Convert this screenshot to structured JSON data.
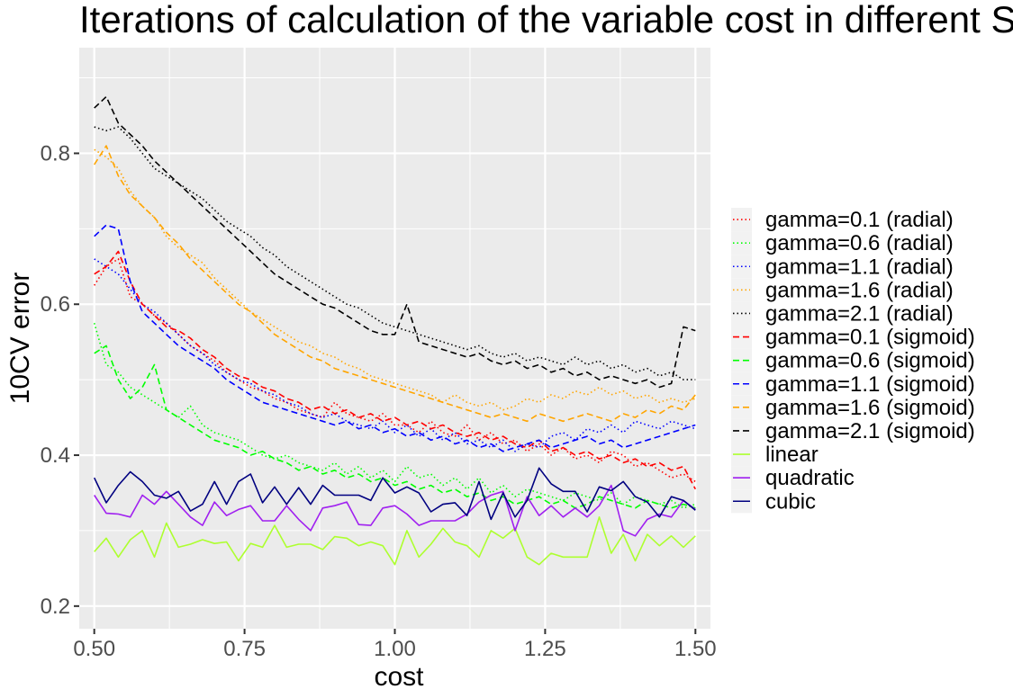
{
  "chart_data": {
    "type": "line",
    "title": "Iterations of calculation of the variable cost in different SVM",
    "xlabel": "cost",
    "ylabel": "10CV error",
    "xlim": [
      0.475,
      1.525
    ],
    "ylim": [
      0.17,
      0.94
    ],
    "x_ticks": [
      0.5,
      0.75,
      1.0,
      1.25,
      1.5
    ],
    "x_tick_labels": [
      "0.50",
      "0.75",
      "1.00",
      "1.25",
      "1.50"
    ],
    "y_ticks": [
      0.2,
      0.4,
      0.6,
      0.8
    ],
    "y_tick_labels": [
      "0.2",
      "0.4",
      "0.6",
      "0.8"
    ],
    "grid": true,
    "legend_position": "right",
    "x": [
      0.5,
      0.52,
      0.54,
      0.56,
      0.58,
      0.6,
      0.62,
      0.64,
      0.66,
      0.68,
      0.7,
      0.72,
      0.74,
      0.76,
      0.78,
      0.8,
      0.82,
      0.84,
      0.86,
      0.88,
      0.9,
      0.92,
      0.94,
      0.96,
      0.98,
      1.0,
      1.02,
      1.04,
      1.06,
      1.08,
      1.1,
      1.12,
      1.14,
      1.16,
      1.18,
      1.2,
      1.22,
      1.24,
      1.26,
      1.28,
      1.3,
      1.32,
      1.34,
      1.36,
      1.38,
      1.4,
      1.42,
      1.44,
      1.46,
      1.48,
      1.5
    ],
    "series": [
      {
        "name": "gamma=0.1 (radial)",
        "color": "#ff0000",
        "dash": "dotted",
        "values": [
          0.625,
          0.65,
          0.66,
          0.61,
          0.6,
          0.585,
          0.575,
          0.56,
          0.545,
          0.535,
          0.525,
          0.51,
          0.5,
          0.49,
          0.485,
          0.475,
          0.47,
          0.46,
          0.455,
          0.45,
          0.47,
          0.455,
          0.45,
          0.445,
          0.455,
          0.44,
          0.44,
          0.43,
          0.445,
          0.43,
          0.425,
          0.44,
          0.42,
          0.43,
          0.415,
          0.42,
          0.405,
          0.415,
          0.4,
          0.41,
          0.395,
          0.4,
          0.39,
          0.405,
          0.4,
          0.385,
          0.39,
          0.38,
          0.37,
          0.375,
          0.365
        ]
      },
      {
        "name": "gamma=0.6 (radial)",
        "color": "#00ff00",
        "dash": "dotted",
        "values": [
          0.575,
          0.52,
          0.51,
          0.49,
          0.48,
          0.47,
          0.46,
          0.45,
          0.465,
          0.44,
          0.43,
          0.425,
          0.42,
          0.41,
          0.4,
          0.395,
          0.4,
          0.39,
          0.385,
          0.38,
          0.39,
          0.375,
          0.385,
          0.37,
          0.38,
          0.365,
          0.385,
          0.37,
          0.375,
          0.36,
          0.37,
          0.355,
          0.37,
          0.35,
          0.36,
          0.345,
          0.355,
          0.35,
          0.345,
          0.34,
          0.35,
          0.345,
          0.34,
          0.35,
          0.335,
          0.345,
          0.34,
          0.335,
          0.34,
          0.33,
          0.335
        ]
      },
      {
        "name": "gamma=1.1 (radial)",
        "color": "#0000ff",
        "dash": "dotted",
        "values": [
          0.66,
          0.65,
          0.64,
          0.62,
          0.6,
          0.59,
          0.575,
          0.56,
          0.545,
          0.535,
          0.52,
          0.51,
          0.5,
          0.495,
          0.485,
          0.48,
          0.47,
          0.465,
          0.455,
          0.45,
          0.455,
          0.445,
          0.44,
          0.435,
          0.445,
          0.43,
          0.44,
          0.425,
          0.435,
          0.42,
          0.43,
          0.415,
          0.42,
          0.41,
          0.42,
          0.405,
          0.415,
          0.41,
          0.425,
          0.43,
          0.42,
          0.435,
          0.43,
          0.44,
          0.43,
          0.445,
          0.44,
          0.435,
          0.445,
          0.44,
          0.435
        ]
      },
      {
        "name": "gamma=1.6 (radial)",
        "color": "#ffa500",
        "dash": "dotted",
        "values": [
          0.805,
          0.795,
          0.78,
          0.75,
          0.73,
          0.715,
          0.69,
          0.675,
          0.665,
          0.655,
          0.635,
          0.62,
          0.605,
          0.59,
          0.58,
          0.57,
          0.56,
          0.55,
          0.545,
          0.535,
          0.53,
          0.52,
          0.515,
          0.505,
          0.5,
          0.495,
          0.49,
          0.485,
          0.48,
          0.47,
          0.48,
          0.47,
          0.465,
          0.47,
          0.46,
          0.465,
          0.475,
          0.47,
          0.48,
          0.475,
          0.485,
          0.48,
          0.49,
          0.48,
          0.485,
          0.475,
          0.48,
          0.47,
          0.475,
          0.47,
          0.475
        ]
      },
      {
        "name": "gamma=2.1 (radial)",
        "color": "#000000",
        "dash": "dotted",
        "values": [
          0.835,
          0.83,
          0.835,
          0.82,
          0.8,
          0.78,
          0.77,
          0.76,
          0.75,
          0.74,
          0.725,
          0.71,
          0.7,
          0.69,
          0.675,
          0.665,
          0.65,
          0.64,
          0.63,
          0.62,
          0.61,
          0.6,
          0.595,
          0.585,
          0.575,
          0.57,
          0.565,
          0.56,
          0.555,
          0.55,
          0.545,
          0.54,
          0.545,
          0.535,
          0.53,
          0.535,
          0.525,
          0.53,
          0.525,
          0.52,
          0.53,
          0.52,
          0.525,
          0.515,
          0.52,
          0.51,
          0.515,
          0.505,
          0.51,
          0.5,
          0.5
        ]
      },
      {
        "name": "gamma=0.1 (sigmoid)",
        "color": "#ff0000",
        "dash": "dashed",
        "values": [
          0.64,
          0.65,
          0.67,
          0.63,
          0.6,
          0.585,
          0.57,
          0.565,
          0.555,
          0.54,
          0.53,
          0.515,
          0.505,
          0.5,
          0.49,
          0.485,
          0.475,
          0.47,
          0.46,
          0.465,
          0.455,
          0.46,
          0.45,
          0.455,
          0.445,
          0.45,
          0.44,
          0.445,
          0.435,
          0.44,
          0.43,
          0.425,
          0.43,
          0.42,
          0.425,
          0.415,
          0.41,
          0.42,
          0.405,
          0.41,
          0.4,
          0.405,
          0.395,
          0.4,
          0.39,
          0.395,
          0.385,
          0.39,
          0.38,
          0.385,
          0.355
        ]
      },
      {
        "name": "gamma=0.6 (sigmoid)",
        "color": "#00ff00",
        "dash": "dashed",
        "values": [
          0.535,
          0.545,
          0.5,
          0.475,
          0.49,
          0.52,
          0.46,
          0.45,
          0.44,
          0.43,
          0.42,
          0.415,
          0.41,
          0.4,
          0.405,
          0.395,
          0.39,
          0.38,
          0.385,
          0.375,
          0.38,
          0.37,
          0.375,
          0.365,
          0.37,
          0.36,
          0.365,
          0.355,
          0.36,
          0.35,
          0.355,
          0.345,
          0.35,
          0.34,
          0.345,
          0.335,
          0.34,
          0.345,
          0.335,
          0.34,
          0.33,
          0.335,
          0.345,
          0.34,
          0.335,
          0.33,
          0.34,
          0.335,
          0.33,
          0.335,
          0.33
        ]
      },
      {
        "name": "gamma=1.1 (sigmoid)",
        "color": "#0000ff",
        "dash": "dashed",
        "values": [
          0.69,
          0.705,
          0.7,
          0.63,
          0.59,
          0.575,
          0.56,
          0.545,
          0.535,
          0.525,
          0.515,
          0.5,
          0.49,
          0.48,
          0.47,
          0.465,
          0.46,
          0.455,
          0.45,
          0.445,
          0.44,
          0.445,
          0.435,
          0.44,
          0.43,
          0.435,
          0.425,
          0.43,
          0.42,
          0.425,
          0.415,
          0.42,
          0.41,
          0.415,
          0.405,
          0.41,
          0.415,
          0.42,
          0.41,
          0.415,
          0.42,
          0.425,
          0.415,
          0.42,
          0.41,
          0.415,
          0.42,
          0.425,
          0.43,
          0.435,
          0.44
        ]
      },
      {
        "name": "gamma=1.6 (sigmoid)",
        "color": "#ffa500",
        "dash": "dashed",
        "values": [
          0.785,
          0.81,
          0.77,
          0.745,
          0.73,
          0.715,
          0.695,
          0.68,
          0.66,
          0.645,
          0.63,
          0.615,
          0.6,
          0.59,
          0.575,
          0.56,
          0.55,
          0.54,
          0.53,
          0.525,
          0.515,
          0.51,
          0.505,
          0.5,
          0.495,
          0.49,
          0.485,
          0.48,
          0.475,
          0.47,
          0.465,
          0.46,
          0.455,
          0.45,
          0.455,
          0.45,
          0.445,
          0.455,
          0.45,
          0.445,
          0.45,
          0.455,
          0.45,
          0.445,
          0.455,
          0.45,
          0.46,
          0.455,
          0.465,
          0.46,
          0.48
        ]
      },
      {
        "name": "gamma=2.1 (sigmoid)",
        "color": "#000000",
        "dash": "dashed",
        "values": [
          0.86,
          0.875,
          0.84,
          0.825,
          0.81,
          0.79,
          0.775,
          0.76,
          0.745,
          0.73,
          0.715,
          0.7,
          0.685,
          0.67,
          0.655,
          0.64,
          0.63,
          0.62,
          0.61,
          0.6,
          0.595,
          0.585,
          0.575,
          0.565,
          0.56,
          0.56,
          0.6,
          0.55,
          0.545,
          0.54,
          0.535,
          0.53,
          0.535,
          0.525,
          0.52,
          0.525,
          0.515,
          0.52,
          0.51,
          0.515,
          0.505,
          0.51,
          0.5,
          0.505,
          0.5,
          0.495,
          0.5,
          0.49,
          0.495,
          0.57,
          0.565
        ]
      },
      {
        "name": "linear",
        "color": "#adff2f",
        "dash": "solid",
        "values": [
          0.272,
          0.29,
          0.265,
          0.288,
          0.3,
          0.265,
          0.31,
          0.278,
          0.282,
          0.288,
          0.283,
          0.285,
          0.26,
          0.283,
          0.278,
          0.307,
          0.278,
          0.282,
          0.282,
          0.275,
          0.292,
          0.29,
          0.28,
          0.285,
          0.28,
          0.255,
          0.3,
          0.265,
          0.282,
          0.303,
          0.285,
          0.28,
          0.265,
          0.3,
          0.29,
          0.303,
          0.265,
          0.255,
          0.27,
          0.265,
          0.265,
          0.265,
          0.318,
          0.27,
          0.295,
          0.26,
          0.295,
          0.28,
          0.293,
          0.278,
          0.293
        ]
      },
      {
        "name": "quadratic",
        "color": "#a020f0",
        "dash": "solid",
        "values": [
          0.347,
          0.323,
          0.322,
          0.318,
          0.347,
          0.335,
          0.352,
          0.335,
          0.318,
          0.307,
          0.338,
          0.32,
          0.328,
          0.333,
          0.313,
          0.313,
          0.333,
          0.315,
          0.3,
          0.33,
          0.333,
          0.338,
          0.308,
          0.307,
          0.33,
          0.333,
          0.322,
          0.307,
          0.313,
          0.313,
          0.313,
          0.322,
          0.338,
          0.347,
          0.352,
          0.3,
          0.345,
          0.32,
          0.333,
          0.318,
          0.33,
          0.318,
          0.333,
          0.36,
          0.3,
          0.293,
          0.315,
          0.322,
          0.318,
          0.34,
          0.328
        ]
      },
      {
        "name": "cubic",
        "color": "#000080",
        "dash": "solid",
        "values": [
          0.37,
          0.337,
          0.36,
          0.378,
          0.365,
          0.347,
          0.343,
          0.352,
          0.326,
          0.335,
          0.365,
          0.335,
          0.365,
          0.375,
          0.337,
          0.358,
          0.335,
          0.357,
          0.335,
          0.36,
          0.347,
          0.347,
          0.347,
          0.34,
          0.37,
          0.35,
          0.358,
          0.35,
          0.325,
          0.335,
          0.337,
          0.32,
          0.365,
          0.315,
          0.35,
          0.318,
          0.34,
          0.383,
          0.362,
          0.352,
          0.352,
          0.325,
          0.358,
          0.353,
          0.365,
          0.345,
          0.338,
          0.318,
          0.345,
          0.34,
          0.327
        ]
      }
    ]
  }
}
